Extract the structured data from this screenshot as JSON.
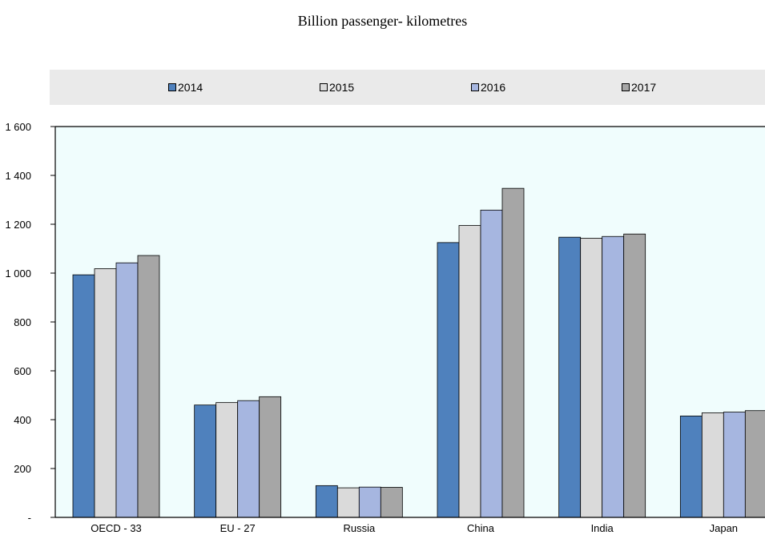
{
  "chart_data": {
    "type": "bar",
    "title": "Billion passenger- kilometres",
    "categories": [
      "OECD - 33",
      "EU - 27",
      "Russia",
      "China",
      "India",
      "Japan"
    ],
    "series": [
      {
        "name": "2014",
        "color": "#4f81bd",
        "values": [
          993,
          460,
          130,
          1125,
          1147,
          415
        ]
      },
      {
        "name": "2015",
        "color": "#dadada",
        "values": [
          1018,
          470,
          121,
          1195,
          1143,
          428
        ]
      },
      {
        "name": "2016",
        "color": "#a6b6e0",
        "values": [
          1042,
          478,
          124,
          1258,
          1150,
          431
        ]
      },
      {
        "name": "2017",
        "color": "#a6a6a6",
        "values": [
          1072,
          494,
          123,
          1347,
          1160,
          437
        ]
      }
    ],
    "ylim": [
      0,
      1600
    ],
    "yticks": [
      0,
      200,
      400,
      600,
      800,
      1000,
      1200,
      1400,
      1600
    ],
    "ytick_labels": [
      "-",
      "200",
      "400",
      "600",
      "800",
      "1 000",
      "1 200",
      "1 400",
      "1 600"
    ],
    "plot_background": "#f0fdfd",
    "legend_position": "top"
  }
}
